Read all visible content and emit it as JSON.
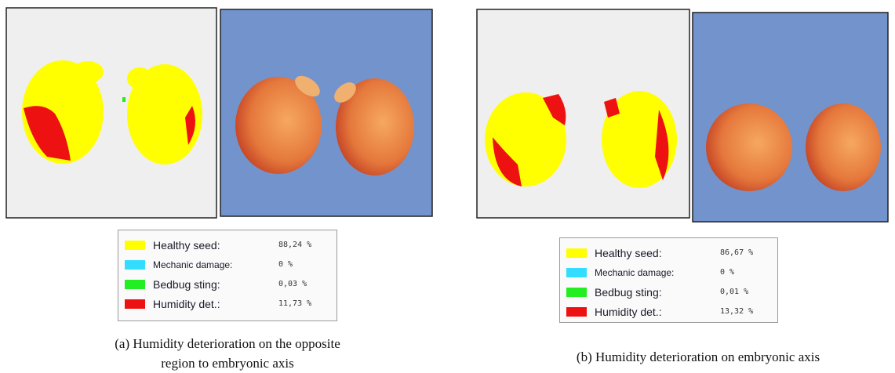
{
  "panels": [
    {
      "legend": [
        {
          "label": "Healthy seed:",
          "value": "88,24 %",
          "color": "#ffff00"
        },
        {
          "label": "Mechanic damage:",
          "value": "0 %",
          "color": "#33ddff"
        },
        {
          "label": "Bedbug sting:",
          "value": "0,03 %",
          "color": "#22ee22"
        },
        {
          "label": "Humidity det.:",
          "value": "11,73 %",
          "color": "#ee1111"
        }
      ],
      "caption": [
        "(a) Humidity deterioration on the opposite",
        "region to embryonic axis"
      ]
    },
    {
      "legend": [
        {
          "label": "Healthy seed:",
          "value": "86,67 %",
          "color": "#ffff00"
        },
        {
          "label": "Mechanic damage:",
          "value": "0 %",
          "color": "#33ddff"
        },
        {
          "label": "Bedbug sting:",
          "value": "0,01 %",
          "color": "#22ee22"
        },
        {
          "label": "Humidity det.:",
          "value": "13,32 %",
          "color": "#ee1111"
        }
      ],
      "caption": [
        "(b) Humidity deterioration on embryonic axis"
      ]
    }
  ]
}
